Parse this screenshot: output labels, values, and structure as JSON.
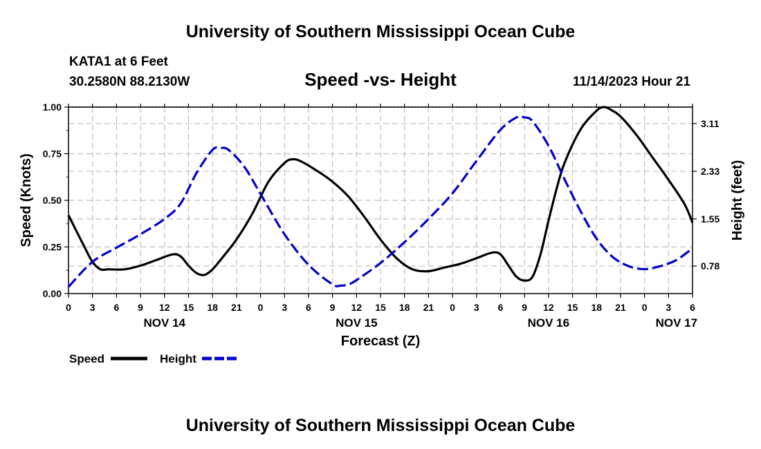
{
  "page": {
    "title_top": "University of Southern Mississippi Ocean Cube",
    "title_bottom": "University of Southern Mississippi Ocean Cube",
    "station": "KATA1 at 6 Feet",
    "coords": "30.2580N  88.2130W",
    "datetime": "11/14/2023 Hour 21"
  },
  "colors": {
    "speed": "#000000",
    "height": "#0000cc",
    "grid": "#bdbdbd"
  },
  "chart_data": {
    "type": "line",
    "title": "Speed -vs- Height",
    "xlabel": "Forecast (Z)",
    "ylabel": "Speed (Knots)",
    "y2label": "Height (feet)",
    "x_unit": "hours since NOV 14 00Z",
    "xlim": [
      0,
      78
    ],
    "ylim": [
      0,
      1
    ],
    "y2lim": [
      0.33,
      3.38
    ],
    "x_ticks": [
      {
        "x": 0,
        "label": "0"
      },
      {
        "x": 3,
        "label": "3"
      },
      {
        "x": 6,
        "label": "6"
      },
      {
        "x": 9,
        "label": "9"
      },
      {
        "x": 12,
        "label": "12"
      },
      {
        "x": 15,
        "label": "15"
      },
      {
        "x": 18,
        "label": "18"
      },
      {
        "x": 21,
        "label": "21"
      },
      {
        "x": 24,
        "label": "0"
      },
      {
        "x": 27,
        "label": "3"
      },
      {
        "x": 30,
        "label": "6"
      },
      {
        "x": 33,
        "label": "9"
      },
      {
        "x": 36,
        "label": "12"
      },
      {
        "x": 39,
        "label": "15"
      },
      {
        "x": 42,
        "label": "18"
      },
      {
        "x": 45,
        "label": "21"
      },
      {
        "x": 48,
        "label": "0"
      },
      {
        "x": 51,
        "label": "3"
      },
      {
        "x": 54,
        "label": "6"
      },
      {
        "x": 57,
        "label": "9"
      },
      {
        "x": 60,
        "label": "12"
      },
      {
        "x": 63,
        "label": "15"
      },
      {
        "x": 66,
        "label": "18"
      },
      {
        "x": 69,
        "label": "21"
      },
      {
        "x": 72,
        "label": "0"
      },
      {
        "x": 75,
        "label": "3"
      },
      {
        "x": 78,
        "label": "6"
      }
    ],
    "day_labels": [
      {
        "x": 12,
        "label": "NOV 14"
      },
      {
        "x": 36,
        "label": "NOV 15"
      },
      {
        "x": 60,
        "label": "NOV 16"
      },
      {
        "x": 76,
        "label": "NOV 17"
      }
    ],
    "y_ticks": [
      {
        "y": 0.0,
        "label": "0.00"
      },
      {
        "y": 0.25,
        "label": "0.25"
      },
      {
        "y": 0.5,
        "label": "0.50"
      },
      {
        "y": 0.75,
        "label": "0.75"
      },
      {
        "y": 1.0,
        "label": "1.00"
      }
    ],
    "y2_ticks": [
      {
        "y": 0.78,
        "label": "0.78"
      },
      {
        "y": 1.55,
        "label": "1.55"
      },
      {
        "y": 2.33,
        "label": "2.33"
      },
      {
        "y": 3.11,
        "label": "3.11"
      }
    ],
    "series": [
      {
        "name": "Speed",
        "axis": "left",
        "style": "solid",
        "x": [
          0,
          2,
          3,
          4,
          5,
          7,
          9,
          11,
          13,
          14,
          15,
          16,
          17,
          18,
          19,
          21,
          23,
          25,
          27,
          28,
          29,
          31,
          33,
          35,
          37,
          39,
          41,
          43,
          45,
          47,
          49,
          51,
          53,
          54,
          55,
          56,
          57,
          58,
          59,
          60,
          61,
          62,
          64,
          66,
          67,
          68,
          69,
          71,
          73,
          75,
          77,
          78
        ],
        "values": [
          0.42,
          0.25,
          0.17,
          0.13,
          0.13,
          0.13,
          0.15,
          0.18,
          0.21,
          0.2,
          0.15,
          0.11,
          0.1,
          0.13,
          0.18,
          0.29,
          0.43,
          0.6,
          0.7,
          0.72,
          0.71,
          0.66,
          0.6,
          0.52,
          0.41,
          0.29,
          0.19,
          0.13,
          0.12,
          0.14,
          0.16,
          0.19,
          0.22,
          0.21,
          0.15,
          0.09,
          0.07,
          0.09,
          0.21,
          0.39,
          0.56,
          0.7,
          0.88,
          0.98,
          1.0,
          0.98,
          0.95,
          0.85,
          0.73,
          0.61,
          0.48,
          0.38
        ]
      },
      {
        "name": "Height",
        "axis": "right",
        "style": "dashed",
        "x": [
          0,
          3,
          6,
          9,
          12,
          14,
          16,
          18,
          19,
          20,
          22,
          24,
          27,
          30,
          33,
          34,
          35,
          36,
          39,
          42,
          45,
          48,
          51,
          54,
          56,
          57,
          58,
          60,
          62,
          64,
          66,
          68,
          70,
          72,
          74,
          76,
          78
        ],
        "values": [
          0.44,
          0.85,
          1.08,
          1.3,
          1.55,
          1.8,
          2.3,
          2.68,
          2.71,
          2.68,
          2.4,
          1.96,
          1.3,
          0.8,
          0.48,
          0.46,
          0.48,
          0.55,
          0.83,
          1.17,
          1.55,
          1.97,
          2.5,
          3.01,
          3.21,
          3.21,
          3.15,
          2.75,
          2.2,
          1.68,
          1.23,
          0.93,
          0.78,
          0.73,
          0.78,
          0.88,
          1.07
        ]
      }
    ],
    "legend": [
      {
        "label": "Speed",
        "series": "Speed"
      },
      {
        "label": "Height",
        "series": "Height"
      }
    ]
  }
}
